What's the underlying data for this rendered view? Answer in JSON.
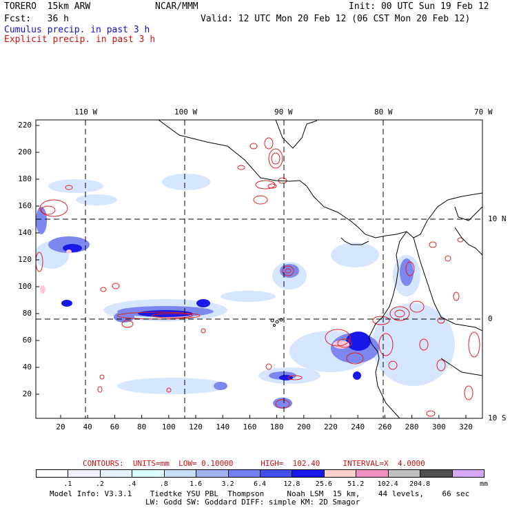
{
  "header": {
    "model": "TORERO  15km ARW",
    "org": "NCAR/MMM",
    "init": "Init: 00 UTC Sun 19 Feb 12",
    "fcst": "Fcst:   36 h",
    "valid": "Valid: 12 UTC Mon 20 Feb 12 (06 CST Mon 20 Feb 12)",
    "cumulus": "Cumulus precip. in past 3 h",
    "explicit": "Explicit precip. in past 3 h"
  },
  "map": {
    "lon_labels": [
      "110 W",
      "100 W",
      "90 W",
      "80 W",
      "70 W"
    ],
    "lat_labels": [
      "10 N",
      "0",
      "10 S"
    ],
    "y_ticks": [
      "220",
      "200",
      "180",
      "160",
      "140",
      "120",
      "100",
      "80",
      "60",
      "40",
      "20"
    ],
    "x_ticks": [
      "20",
      "40",
      "60",
      "80",
      "100",
      "120",
      "140",
      "160",
      "180",
      "200",
      "220",
      "240",
      "260",
      "280",
      "300",
      "320"
    ]
  },
  "contours": {
    "label": "CONTOURS:  UNITS=mm  LOW= 0.10000      HIGH=  102.40     INTERVAL=X  4.0000"
  },
  "colorbar": {
    "colors": [
      "#ffffff",
      "#f2f2ff",
      "#e6f2ff",
      "#d9ffff",
      "#c8e0f8",
      "#a0b0f0",
      "#7080f0",
      "#4050e8",
      "#1818e8",
      "#ffd0d0",
      "#f090c0",
      "#c0c0c0",
      "#505050",
      "#d8a8f8"
    ],
    "labels": [
      ".1",
      ".2",
      ".4",
      ".8",
      "1.6",
      "3.2",
      "6.4",
      "12.8",
      "25.6",
      "51.2",
      "102.4",
      "204.8"
    ],
    "unit": "mm"
  },
  "footer": {
    "line1": "Model Info: V3.3.1    Tiedtke YSU PBL  Thompson     Noah LSM  15 km,    44 levels,    66 sec",
    "line2": "LW: Godd SW: Goddard DIFF: simple KM: 2D Smagor"
  }
}
